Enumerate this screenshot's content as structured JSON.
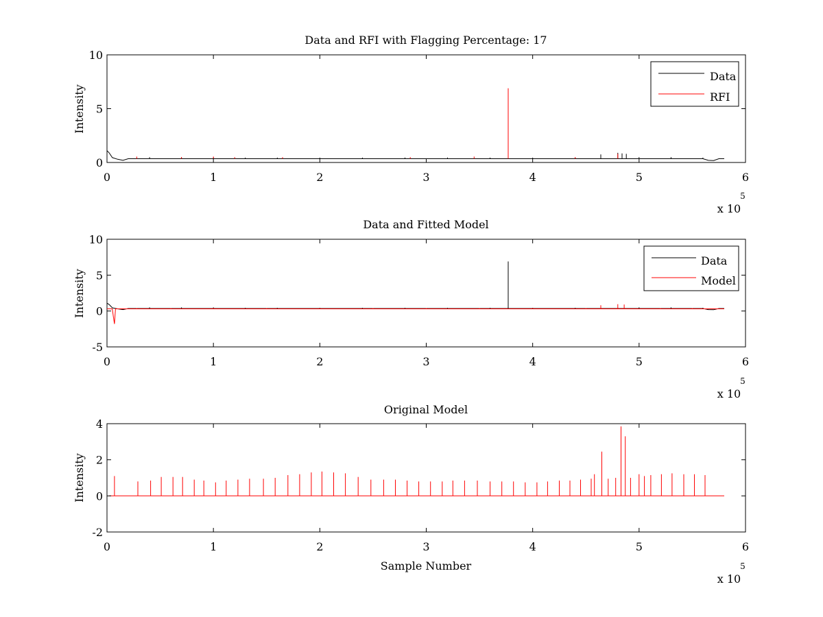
{
  "figure": {
    "background": "#ffffff"
  },
  "chart_data": [
    {
      "id": "p1",
      "type": "line",
      "title": "Data and RFI with Flagging Percentage: 17",
      "xlabel": "",
      "ylabel": "Intensity",
      "xlim": [
        0,
        6
      ],
      "ylim": [
        0,
        10
      ],
      "xticks": [
        "0",
        "1",
        "2",
        "3",
        "4",
        "5",
        "6"
      ],
      "yticks": [
        "0",
        "5",
        "10"
      ],
      "x_multiplier": {
        "base": "x 10",
        "exponent": "5"
      },
      "legend": {
        "position": "top-right",
        "entries": [
          {
            "label": "Data",
            "color": "#000000"
          },
          {
            "label": "RFI",
            "color": "#ff0000"
          }
        ]
      },
      "series": [
        {
          "name": "Data",
          "color": "#000000",
          "baseline": 0.35,
          "points": [
            [
              0,
              1.1
            ],
            [
              0.02,
              0.9
            ],
            [
              0.05,
              0.45
            ],
            [
              0.1,
              0.3
            ],
            [
              0.15,
              0.2
            ],
            [
              0.2,
              0.35
            ],
            [
              0.22,
              0.35
            ],
            [
              5.6,
              0.35
            ],
            [
              5.65,
              0.2
            ],
            [
              5.7,
              0.18
            ],
            [
              5.75,
              0.35
            ],
            [
              5.8,
              0.35
            ]
          ],
          "spikes": [
            [
              0.4,
              0.5
            ],
            [
              0.7,
              0.5
            ],
            [
              1.0,
              0.5
            ],
            [
              1.3,
              0.45
            ],
            [
              1.6,
              0.45
            ],
            [
              2.0,
              0.45
            ],
            [
              2.4,
              0.45
            ],
            [
              2.8,
              0.45
            ],
            [
              3.2,
              0.45
            ],
            [
              3.6,
              0.45
            ],
            [
              4.0,
              0.45
            ],
            [
              4.4,
              0.45
            ],
            [
              4.64,
              0.75
            ],
            [
              4.8,
              0.9
            ],
            [
              4.84,
              0.85
            ],
            [
              4.88,
              0.8
            ],
            [
              5.0,
              0.5
            ],
            [
              5.3,
              0.5
            ],
            [
              5.6,
              0.45
            ]
          ]
        },
        {
          "name": "RFI",
          "color": "#ff0000",
          "baseline": 0.35,
          "spikes": [
            [
              0.28,
              0.55
            ],
            [
              0.7,
              0.5
            ],
            [
              1.0,
              0.55
            ],
            [
              1.2,
              0.5
            ],
            [
              1.65,
              0.5
            ],
            [
              2.85,
              0.5
            ],
            [
              3.45,
              0.55
            ],
            [
              3.77,
              6.9
            ],
            [
              4.4,
              0.5
            ],
            [
              4.8,
              0.8
            ]
          ]
        }
      ]
    },
    {
      "id": "p2",
      "type": "line",
      "title": "Data and Fitted Model",
      "xlabel": "",
      "ylabel": "Intensity",
      "xlim": [
        0,
        6
      ],
      "ylim": [
        -5,
        10
      ],
      "xticks": [
        "0",
        "1",
        "2",
        "3",
        "4",
        "5",
        "6"
      ],
      "yticks": [
        "-5",
        "0",
        "5",
        "10"
      ],
      "x_multiplier": {
        "base": "x 10",
        "exponent": "5"
      },
      "legend": {
        "position": "top-right",
        "entries": [
          {
            "label": "Data",
            "color": "#000000"
          },
          {
            "label": "Model",
            "color": "#ff0000"
          }
        ]
      },
      "series": [
        {
          "name": "Data",
          "color": "#000000",
          "baseline": 0.35,
          "points": [
            [
              0,
              1.1
            ],
            [
              0.02,
              0.9
            ],
            [
              0.05,
              0.45
            ],
            [
              0.1,
              0.3
            ],
            [
              0.15,
              0.2
            ],
            [
              0.2,
              0.35
            ],
            [
              0.22,
              0.35
            ],
            [
              5.6,
              0.35
            ],
            [
              5.65,
              0.2
            ],
            [
              5.7,
              0.18
            ],
            [
              5.75,
              0.35
            ],
            [
              5.8,
              0.35
            ]
          ],
          "spikes": [
            [
              0.4,
              0.5
            ],
            [
              0.7,
              0.5
            ],
            [
              1.0,
              0.5
            ],
            [
              1.3,
              0.45
            ],
            [
              1.6,
              0.45
            ],
            [
              2.0,
              0.45
            ],
            [
              2.4,
              0.45
            ],
            [
              2.8,
              0.45
            ],
            [
              3.2,
              0.45
            ],
            [
              3.6,
              0.45
            ],
            [
              3.77,
              6.9
            ],
            [
              4.0,
              0.45
            ],
            [
              4.4,
              0.45
            ],
            [
              5.0,
              0.5
            ],
            [
              5.3,
              0.5
            ],
            [
              5.6,
              0.45
            ]
          ]
        },
        {
          "name": "Model",
          "color": "#ff0000",
          "baseline": 0.3,
          "points": [
            [
              0,
              0.3
            ],
            [
              0.05,
              0.3
            ],
            [
              0.06,
              -0.8
            ],
            [
              0.07,
              -1.8
            ],
            [
              0.08,
              0.3
            ],
            [
              5.8,
              0.3
            ]
          ],
          "spikes": [
            [
              0.28,
              0.4
            ],
            [
              0.6,
              0.4
            ],
            [
              1.0,
              0.4
            ],
            [
              1.5,
              0.4
            ],
            [
              2.0,
              0.4
            ],
            [
              2.5,
              0.4
            ],
            [
              3.0,
              0.4
            ],
            [
              3.5,
              0.4
            ],
            [
              4.0,
              0.4
            ],
            [
              4.5,
              0.4
            ],
            [
              4.64,
              0.8
            ],
            [
              4.8,
              0.95
            ],
            [
              4.86,
              0.9
            ],
            [
              5.2,
              0.4
            ],
            [
              5.5,
              0.4
            ]
          ]
        }
      ]
    },
    {
      "id": "p3",
      "type": "line",
      "title": "Original Model",
      "xlabel": "Sample Number",
      "ylabel": "Intensity",
      "xlim": [
        0,
        6
      ],
      "ylim": [
        -2,
        4
      ],
      "xticks": [
        "0",
        "1",
        "2",
        "3",
        "4",
        "5",
        "6"
      ],
      "yticks": [
        "-2",
        "0",
        "2",
        "4"
      ],
      "x_multiplier": {
        "base": "x 10",
        "exponent": "5"
      },
      "series": [
        {
          "name": "Original Model",
          "color": "#ff0000",
          "baseline": 0.0,
          "points": [
            [
              0.02,
              0
            ],
            [
              5.8,
              0
            ]
          ],
          "spikes": [
            [
              0.07,
              1.1
            ],
            [
              0.29,
              0.8
            ],
            [
              0.41,
              0.85
            ],
            [
              0.51,
              1.05
            ],
            [
              0.62,
              1.05
            ],
            [
              0.71,
              1.05
            ],
            [
              0.82,
              0.9
            ],
            [
              0.91,
              0.85
            ],
            [
              1.02,
              0.75
            ],
            [
              1.12,
              0.85
            ],
            [
              1.23,
              0.9
            ],
            [
              1.34,
              0.95
            ],
            [
              1.47,
              0.95
            ],
            [
              1.58,
              1.0
            ],
            [
              1.7,
              1.15
            ],
            [
              1.81,
              1.2
            ],
            [
              1.92,
              1.3
            ],
            [
              2.02,
              1.35
            ],
            [
              2.13,
              1.3
            ],
            [
              2.24,
              1.25
            ],
            [
              2.36,
              1.05
            ],
            [
              2.48,
              0.9
            ],
            [
              2.6,
              0.9
            ],
            [
              2.71,
              0.9
            ],
            [
              2.82,
              0.85
            ],
            [
              2.93,
              0.8
            ],
            [
              3.04,
              0.8
            ],
            [
              3.15,
              0.8
            ],
            [
              3.25,
              0.85
            ],
            [
              3.36,
              0.85
            ],
            [
              3.48,
              0.85
            ],
            [
              3.6,
              0.8
            ],
            [
              3.71,
              0.8
            ],
            [
              3.82,
              0.8
            ],
            [
              3.93,
              0.75
            ],
            [
              4.04,
              0.75
            ],
            [
              4.14,
              0.8
            ],
            [
              4.25,
              0.85
            ],
            [
              4.35,
              0.85
            ],
            [
              4.45,
              0.9
            ],
            [
              4.55,
              0.95
            ],
            [
              4.58,
              1.2
            ],
            [
              4.65,
              2.45
            ],
            [
              4.71,
              0.95
            ],
            [
              4.78,
              1.0
            ],
            [
              4.83,
              3.85
            ],
            [
              4.87,
              3.3
            ],
            [
              4.92,
              1.0
            ],
            [
              5.0,
              1.2
            ],
            [
              5.05,
              1.1
            ],
            [
              5.11,
              1.15
            ],
            [
              5.21,
              1.2
            ],
            [
              5.31,
              1.25
            ],
            [
              5.42,
              1.2
            ],
            [
              5.52,
              1.2
            ],
            [
              5.62,
              1.15
            ]
          ]
        }
      ]
    }
  ]
}
